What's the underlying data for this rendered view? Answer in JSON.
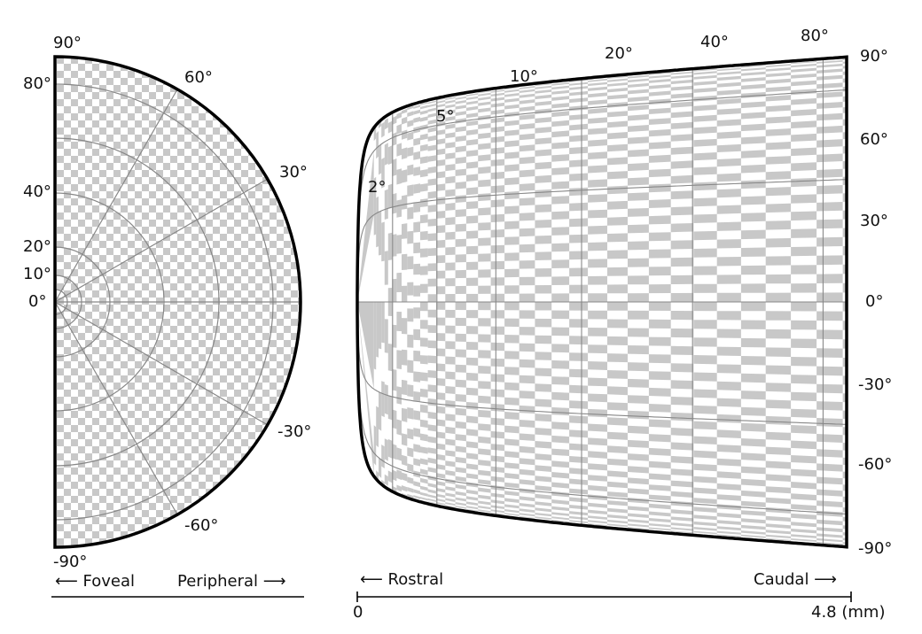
{
  "left_panel": {
    "angle_labels": [
      "90°",
      "60°",
      "30°",
      "-30°",
      "-60°",
      "-90°"
    ],
    "eccentricity_labels": [
      "80°",
      "40°",
      "20°",
      "10°",
      "0°"
    ],
    "axis_left_text": "⟵ Foveal",
    "axis_right_text": "Peripheral ⟶"
  },
  "right_panel": {
    "eccentricity_labels": [
      "2°",
      "5°",
      "10°",
      "20°",
      "40°",
      "80°"
    ],
    "angle_labels": [
      "90°",
      "60°",
      "30°",
      "0°",
      "-30°",
      "-60°",
      "-90°"
    ],
    "axis_left_text": "⟵ Rostral",
    "axis_right_text": "Caudal ⟶",
    "scale_start": "0",
    "scale_end": "4.8 (mm)"
  },
  "colors": {
    "check_gray": "#c8c8c8",
    "grid_line": "#888888",
    "outline": "#000000"
  }
}
